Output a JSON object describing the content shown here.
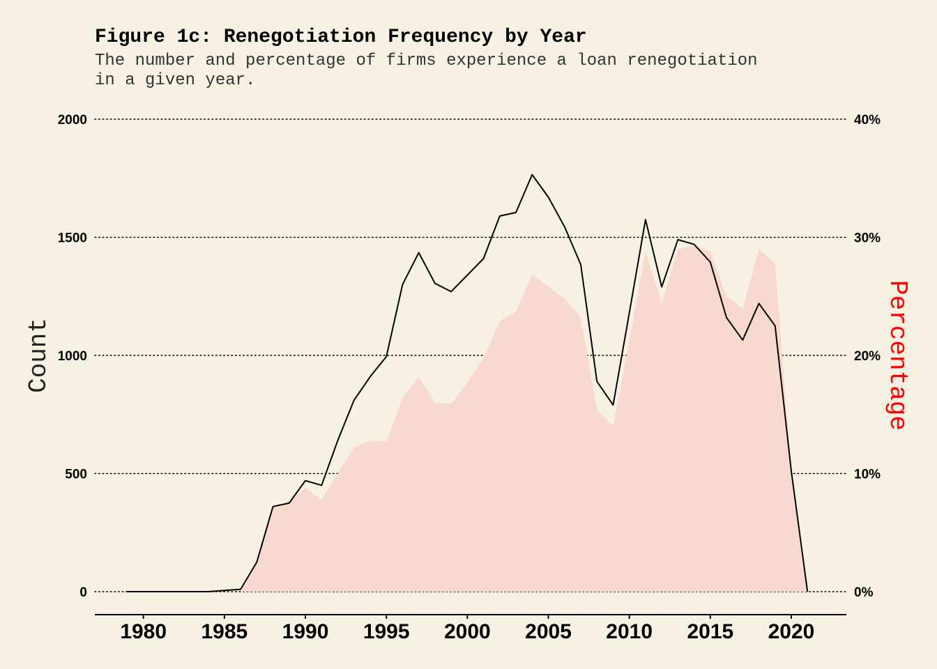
{
  "chart_data": {
    "type": "line",
    "title": "Figure 1c: Renegotiation Frequency by Year",
    "subtitle_lines": [
      "The number and percentage of firms experience a loan renegotiation",
      "in a given year."
    ],
    "ylabel": "Count",
    "y2label": "Percentage",
    "xlim": [
      1977,
      2023.4
    ],
    "ylim": [
      0,
      2000
    ],
    "y2lim": [
      0,
      40
    ],
    "y_ticks": [
      0,
      500,
      1000,
      1500,
      2000
    ],
    "y_tick_labels": [
      "0",
      "500",
      "1000",
      "1500",
      "2000"
    ],
    "y2_tick_labels": [
      "0%",
      "10%",
      "20%",
      "30%",
      "40%"
    ],
    "x_ticks": [
      1980,
      1985,
      1990,
      1995,
      2000,
      2005,
      2010,
      2015,
      2020
    ],
    "x_tick_labels": [
      "1980",
      "1985",
      "1990",
      "1995",
      "2000",
      "2005",
      "2010",
      "2015",
      "2020"
    ],
    "grid": "horizontal dotted",
    "colors": {
      "background": "#F7F1E4",
      "count_line": "#000000",
      "percentage_fill": "#F8D9CF",
      "percentage_label": "#FF0000"
    },
    "series": [
      {
        "type": "line",
        "axis": "left",
        "x": [
          1979,
          1980,
          1981,
          1982,
          1983,
          1984,
          1985,
          1986,
          1987,
          1988,
          1989,
          1990,
          1991,
          1992,
          1993,
          1994,
          1995,
          1996,
          1997,
          1998,
          1999,
          2000,
          2001,
          2002,
          2003,
          2004,
          2005,
          2006,
          2007,
          2008,
          2009,
          2010,
          2011,
          2012,
          2013,
          2014,
          2015,
          2016,
          2017,
          2018,
          2019,
          2020,
          2021
        ],
        "values": [
          0,
          0,
          0,
          0,
          0,
          0,
          5,
          10,
          125,
          360,
          375,
          470,
          450,
          640,
          810,
          910,
          995,
          1300,
          1435,
          1305,
          1270,
          1340,
          1410,
          1590,
          1605,
          1765,
          1670,
          1545,
          1385,
          890,
          790,
          1180,
          1575,
          1290,
          1490,
          1470,
          1395,
          1160,
          1065,
          1220,
          1125,
          510,
          0
        ]
      },
      {
        "type": "area",
        "axis": "right",
        "x": [
          1986,
          1987,
          1988,
          1989,
          1990,
          1991,
          1992,
          1993,
          1994,
          1995,
          1996,
          1997,
          1998,
          1999,
          2000,
          2001,
          2002,
          2003,
          2004,
          2005,
          2006,
          2007,
          2008,
          2009,
          2010,
          2011,
          2012,
          2013,
          2014,
          2015,
          2016,
          2017,
          2018,
          2019,
          2020,
          2021
        ],
        "values": [
          0.3,
          2.4,
          7.2,
          7.5,
          8.8,
          7.8,
          10.0,
          12.2,
          12.8,
          12.7,
          16.4,
          18.2,
          16.0,
          15.9,
          17.7,
          19.8,
          22.9,
          23.7,
          26.9,
          25.8,
          24.8,
          23.2,
          15.4,
          14.0,
          21.3,
          28.8,
          24.4,
          29.0,
          29.3,
          28.8,
          25.0,
          24.0,
          29.0,
          27.8,
          10.0,
          0
        ]
      }
    ]
  }
}
